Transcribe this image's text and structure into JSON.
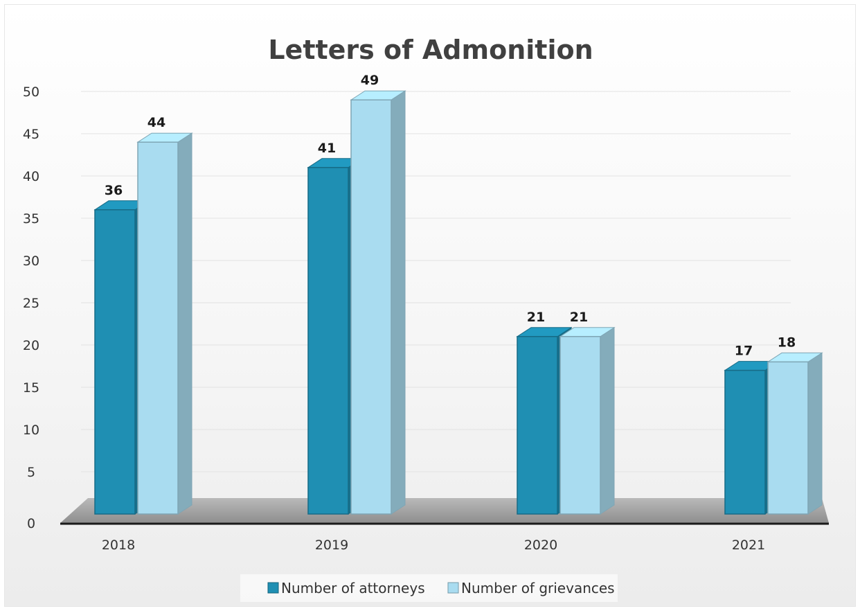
{
  "chart_data": {
    "type": "bar",
    "title": "Letters of Admonition",
    "categories": [
      "2018",
      "2019",
      "2020",
      "2021"
    ],
    "series": [
      {
        "name": "Number of attorneys",
        "values": [
          36,
          41,
          21,
          17
        ],
        "color": "#1f8fb3"
      },
      {
        "name": "Number of grievances",
        "values": [
          44,
          49,
          21,
          18
        ],
        "color": "#a9dcf0"
      }
    ],
    "yticks": [
      "0",
      "5",
      "10",
      "15",
      "20",
      "25",
      "30",
      "35",
      "40",
      "45",
      "50"
    ],
    "ylim": [
      0,
      50
    ],
    "grid": true,
    "legend_position": "bottom"
  }
}
